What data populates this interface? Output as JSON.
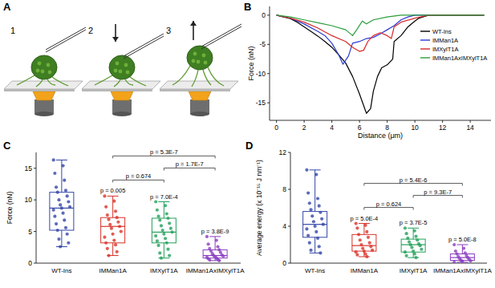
{
  "schematic": {
    "label": "A",
    "steps": [
      "1",
      "2",
      "3"
    ]
  },
  "chart_data": [
    {
      "type": "line",
      "title": "B",
      "xlabel": "Distance (μm)",
      "ylabel": "Force (nN)",
      "xlim": [
        -0.5,
        15.5
      ],
      "xticks": [
        0,
        2,
        4,
        6,
        8,
        10,
        12,
        14
      ],
      "ylim": [
        -18,
        1.5
      ],
      "yticks": [
        -15,
        -10,
        -5,
        0
      ],
      "legend": "upper right",
      "series": [
        {
          "name": "WT-Ins",
          "color": "#000000",
          "x": [
            0,
            0.5,
            1,
            1.5,
            2,
            2.5,
            3,
            3.5,
            4,
            4.5,
            5,
            5.5,
            6,
            6.5,
            6.8,
            7,
            7.3,
            7.6,
            8,
            8.4,
            8.5,
            9,
            9.5,
            10,
            10.3,
            11,
            15
          ],
          "values": [
            0,
            -0.3,
            -0.6,
            -1.2,
            -2,
            -2.8,
            -3.6,
            -4.5,
            -5.5,
            -6.8,
            -8.2,
            -10.5,
            -13.5,
            -16.8,
            -16,
            -13,
            -10.5,
            -9,
            -8.5,
            -7.5,
            -4.5,
            -3.5,
            -2,
            -1,
            -0.5,
            0,
            0
          ]
        },
        {
          "name": "IMMan1A",
          "color": "#2b3bd1",
          "x": [
            0,
            1,
            2,
            3,
            3.5,
            4,
            4.5,
            4.8,
            5.2,
            5.5,
            6,
            6.5,
            7,
            7.5,
            8,
            8.5,
            9,
            9.5,
            10,
            15
          ],
          "values": [
            0,
            -0.5,
            -1.5,
            -2.8,
            -3.5,
            -4.8,
            -6.8,
            -8.4,
            -7,
            -4.8,
            -4.5,
            -4,
            -3.8,
            -3.2,
            -2.5,
            -1.8,
            -0.8,
            -0.3,
            0,
            0
          ]
        },
        {
          "name": "IMXylT1A",
          "color": "#d62a2a",
          "x": [
            0,
            1,
            2,
            3,
            4,
            5,
            5.5,
            6,
            6.3,
            6.6,
            7,
            7.5,
            8,
            8.3,
            8.5,
            9,
            10,
            11,
            15
          ],
          "values": [
            0,
            -0.5,
            -1.2,
            -2.2,
            -3.5,
            -4.5,
            -5.5,
            -6.2,
            -6,
            -4.5,
            -3.5,
            -3,
            -3.5,
            -4,
            -2,
            -1.2,
            -0.5,
            0,
            0
          ]
        },
        {
          "name": "IMMan1AxIMXylT1A",
          "color": "#2a9d3a",
          "x": [
            0,
            1,
            2,
            3,
            4,
            5,
            5.5,
            5.8,
            6.2,
            6.5,
            7,
            8,
            9,
            15
          ],
          "values": [
            0,
            -0.3,
            -0.8,
            -1.3,
            -1.8,
            -2.5,
            -3.5,
            -2.5,
            -1,
            -1.5,
            -0.8,
            -0.3,
            0,
            0
          ]
        }
      ]
    },
    {
      "type": "box",
      "title": "C",
      "ylabel": "Force (nN)",
      "categories": [
        "WT-Ins",
        "IMMan1A",
        "IMXylT1A",
        "IMMan1AxIMXylT1A"
      ],
      "colors": [
        "#3346a8",
        "#d9342b",
        "#23a05a",
        "#8a3fc0"
      ],
      "ylim": [
        0,
        17.5
      ],
      "yticks": [
        0,
        5,
        10,
        15
      ],
      "boxes": [
        {
          "min": 2.6,
          "q1": 5.2,
          "median": 8.7,
          "q3": 11.2,
          "max": 16.3,
          "points": [
            16.3,
            15.4,
            14.2,
            13.1,
            12.0,
            11.5,
            11.2,
            10.6,
            10.0,
            9.7,
            9.2,
            8.9,
            8.7,
            8.4,
            7.9,
            7.4,
            6.8,
            6.2,
            5.6,
            5.2,
            4.6,
            3.8,
            3.2,
            2.6
          ]
        },
        {
          "min": 1.2,
          "q1": 3.2,
          "median": 5.8,
          "q3": 7.2,
          "max": 10.6,
          "points": [
            10.6,
            9.8,
            8.9,
            8.2,
            7.6,
            7.2,
            6.9,
            6.5,
            6.1,
            5.8,
            5.5,
            5.0,
            4.6,
            4.1,
            3.6,
            3.2,
            2.9,
            2.3,
            1.8,
            1.2
          ]
        },
        {
          "min": 0.8,
          "q1": 3.2,
          "median": 4.9,
          "q3": 7.1,
          "max": 9.7,
          "points": [
            9.7,
            9.1,
            8.4,
            7.8,
            7.4,
            7.1,
            6.8,
            6.3,
            5.9,
            5.5,
            5.2,
            4.9,
            4.6,
            4.3,
            3.9,
            3.5,
            3.2,
            2.8,
            2.2,
            1.6,
            1.2,
            0.8
          ]
        },
        {
          "min": 0.4,
          "q1": 0.8,
          "median": 1.2,
          "q3": 2.1,
          "max": 4.2,
          "points": [
            4.2,
            3.6,
            3.0,
            2.6,
            2.3,
            2.1,
            1.9,
            1.7,
            1.5,
            1.3,
            1.2,
            1.1,
            1.0,
            0.9,
            0.8,
            0.7,
            0.6,
            0.5,
            0.4
          ]
        }
      ],
      "annotations": [
        {
          "text": "p = 0.005",
          "category": 1
        },
        {
          "text": "p = 7.0E-4",
          "category": 2
        },
        {
          "text": "p = 3.8E-9",
          "category": 3
        }
      ],
      "brackets": [
        {
          "text": "p = 0.674",
          "between": [
            1,
            2
          ]
        },
        {
          "text": "p = 1.7E-7",
          "between": [
            2,
            3
          ]
        },
        {
          "text": "p = 5.3E-7",
          "between": [
            1,
            3
          ]
        }
      ]
    },
    {
      "type": "box",
      "title": "D",
      "ylabel": "Average energy (x 10⁻¹⁵ J nm⁻¹)",
      "categories": [
        "WT-Ins",
        "IMMan1A",
        "IMXylT1A",
        "IMMan1AxIMXylT1A"
      ],
      "colors": [
        "#3346a8",
        "#d9342b",
        "#23a05a",
        "#8a3fc0"
      ],
      "ylim": [
        0,
        12
      ],
      "yticks": [
        0,
        4,
        8,
        12
      ],
      "boxes": [
        {
          "min": 1.1,
          "q1": 2.8,
          "median": 4.2,
          "q3": 5.6,
          "max": 10.1,
          "points": [
            10.1,
            9.6,
            7.6,
            7.0,
            6.5,
            6.2,
            5.8,
            5.5,
            5.1,
            4.8,
            4.5,
            4.2,
            4.0,
            3.7,
            3.4,
            3.0,
            2.7,
            2.2,
            1.8,
            1.4,
            1.1
          ]
        },
        {
          "min": 0.7,
          "q1": 1.3,
          "median": 1.9,
          "q3": 3.1,
          "max": 4.3,
          "points": [
            4.3,
            4.1,
            3.8,
            3.4,
            3.1,
            2.8,
            2.5,
            2.2,
            2.0,
            1.8,
            1.6,
            1.4,
            1.3,
            1.2,
            1.0,
            0.9,
            0.7
          ]
        },
        {
          "min": 0.6,
          "q1": 1.2,
          "median": 2.0,
          "q3": 2.6,
          "max": 3.8,
          "points": [
            3.8,
            3.5,
            3.2,
            2.9,
            2.7,
            2.5,
            2.3,
            2.1,
            2.0,
            1.9,
            1.7,
            1.5,
            1.3,
            1.2,
            1.0,
            0.8,
            0.6
          ]
        },
        {
          "min": 0.1,
          "q1": 0.3,
          "median": 0.6,
          "q3": 1.0,
          "max": 2.0,
          "points": [
            2.0,
            1.6,
            1.3,
            1.1,
            1.0,
            0.8,
            0.7,
            0.6,
            0.5,
            0.4,
            0.3,
            0.25,
            0.2,
            0.1
          ]
        }
      ],
      "annotations": [
        {
          "text": "p = 5.0E-4",
          "category": 1
        },
        {
          "text": "p = 3.7E-5",
          "category": 2
        },
        {
          "text": "p = 5.0E-8",
          "category": 3
        }
      ],
      "brackets": [
        {
          "text": "p = 0.624",
          "between": [
            1,
            2
          ]
        },
        {
          "text": "p = 9.3E-7",
          "between": [
            2,
            3
          ]
        },
        {
          "text": "p = 5.4E-6",
          "between": [
            1,
            3
          ]
        }
      ]
    }
  ]
}
